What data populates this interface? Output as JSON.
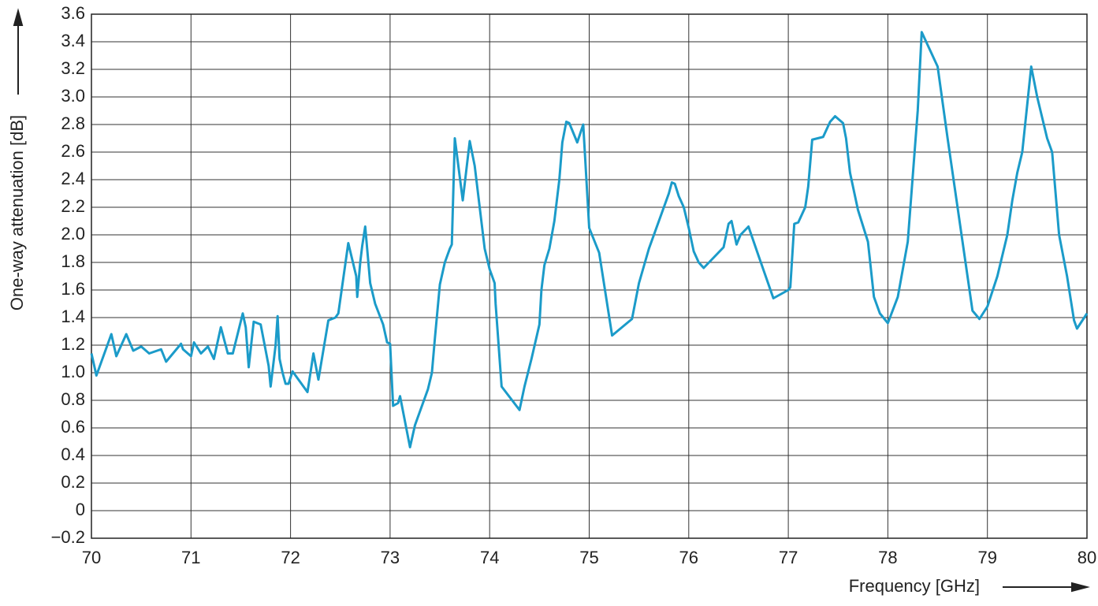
{
  "chart_data": {
    "type": "line",
    "x_label": "Frequency [GHz]",
    "y_label": "One-way attenuation [dB]",
    "color": "#1b9bc9",
    "grid": true,
    "xlim": [
      70,
      80
    ],
    "xticks": [
      70,
      71,
      72,
      73,
      74,
      75,
      76,
      77,
      78,
      79,
      80
    ],
    "ylim": [
      -0.2,
      3.6
    ],
    "yticks": [
      {
        "value": -0.2,
        "label": "−0.2"
      },
      0,
      0.2,
      0.4,
      0.6,
      0.8,
      {
        "value": 1.0,
        "label": "1.0"
      },
      1.2,
      1.4,
      1.6,
      1.8,
      {
        "value": 2.0,
        "label": "2.0"
      },
      2.2,
      2.4,
      2.6,
      2.8,
      {
        "value": 3.0,
        "label": "3.0"
      },
      3.2,
      3.4,
      3.6
    ],
    "x": [
      70.0,
      70.05,
      70.2,
      70.25,
      70.35,
      70.42,
      70.5,
      70.58,
      70.7,
      70.75,
      70.9,
      70.92,
      71.0,
      71.03,
      71.1,
      71.17,
      71.23,
      71.3,
      71.37,
      71.42,
      71.52,
      71.55,
      71.58,
      71.63,
      71.7,
      71.78,
      71.8,
      71.85,
      71.87,
      71.89,
      71.92,
      71.95,
      71.98,
      72.02,
      72.17,
      72.23,
      72.28,
      72.38,
      72.45,
      72.48,
      72.58,
      72.66,
      72.67,
      72.7,
      72.72,
      72.75,
      72.8,
      72.85,
      72.93,
      72.97,
      73.0,
      73.03,
      73.08,
      73.1,
      73.2,
      73.25,
      73.33,
      73.38,
      73.42,
      73.45,
      73.5,
      73.55,
      73.6,
      73.62,
      73.65,
      73.73,
      73.8,
      73.85,
      73.9,
      73.95,
      74.0,
      74.05,
      74.06,
      74.12,
      74.3,
      74.35,
      74.42,
      74.5,
      74.52,
      74.55,
      74.6,
      74.65,
      74.7,
      74.73,
      74.77,
      74.8,
      74.88,
      74.94,
      75.0,
      75.1,
      75.23,
      75.43,
      75.5,
      75.6,
      75.7,
      75.8,
      75.83,
      75.86,
      75.9,
      75.95,
      76.0,
      76.05,
      76.1,
      76.15,
      76.35,
      76.4,
      76.43,
      76.48,
      76.52,
      76.6,
      76.7,
      76.85,
      77.0,
      77.02,
      77.06,
      77.1,
      77.17,
      77.2,
      77.24,
      77.35,
      77.42,
      77.47,
      77.55,
      77.58,
      77.62,
      77.7,
      77.8,
      77.86,
      77.92,
      78.0,
      78.1,
      78.2,
      78.3,
      78.34,
      78.5,
      78.6,
      78.75,
      78.85,
      78.92,
      79.0,
      79.1,
      79.2,
      79.25,
      79.3,
      79.35,
      79.44,
      79.5,
      79.6,
      79.65,
      79.72,
      79.8,
      79.87,
      79.9,
      80.0
    ],
    "values": [
      1.14,
      0.98,
      1.28,
      1.12,
      1.28,
      1.16,
      1.19,
      1.14,
      1.17,
      1.08,
      1.21,
      1.17,
      1.12,
      1.22,
      1.14,
      1.19,
      1.1,
      1.33,
      1.14,
      1.14,
      1.43,
      1.33,
      1.04,
      1.37,
      1.35,
      1.05,
      0.9,
      1.2,
      1.41,
      1.1,
      1.0,
      0.92,
      0.92,
      1.01,
      0.86,
      1.14,
      0.95,
      1.38,
      1.4,
      1.43,
      1.94,
      1.7,
      1.55,
      1.8,
      1.92,
      2.06,
      1.65,
      1.5,
      1.35,
      1.22,
      1.21,
      0.76,
      0.78,
      0.83,
      0.46,
      0.62,
      0.78,
      0.88,
      1.0,
      1.25,
      1.64,
      1.8,
      1.9,
      1.93,
      2.7,
      2.25,
      2.68,
      2.5,
      2.2,
      1.9,
      1.75,
      1.65,
      1.5,
      0.9,
      0.73,
      0.9,
      1.1,
      1.35,
      1.6,
      1.78,
      1.9,
      2.1,
      2.4,
      2.67,
      2.82,
      2.81,
      2.67,
      2.8,
      2.05,
      1.87,
      1.27,
      1.39,
      1.65,
      1.9,
      2.1,
      2.3,
      2.38,
      2.37,
      2.28,
      2.2,
      2.05,
      1.88,
      1.8,
      1.76,
      1.91,
      2.08,
      2.1,
      1.93,
      2.0,
      2.06,
      1.85,
      1.54,
      1.6,
      1.62,
      2.08,
      2.09,
      2.2,
      2.35,
      2.69,
      2.71,
      2.82,
      2.86,
      2.81,
      2.7,
      2.45,
      2.18,
      1.95,
      1.55,
      1.43,
      1.36,
      1.55,
      1.95,
      2.9,
      3.47,
      3.22,
      2.7,
      1.95,
      1.45,
      1.39,
      1.48,
      1.7,
      2.0,
      2.25,
      2.45,
      2.6,
      3.22,
      3.0,
      2.7,
      2.6,
      2.0,
      1.7,
      1.38,
      1.32,
      1.43
    ]
  }
}
